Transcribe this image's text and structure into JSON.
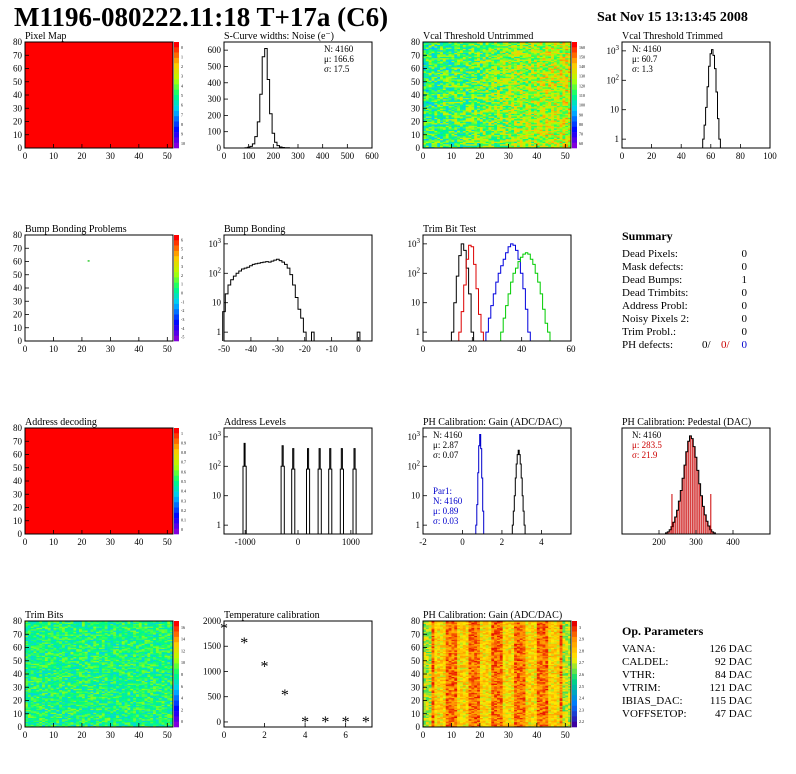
{
  "header": {
    "title": "M1196-080222.11:18 T+17a (C6)",
    "date": "Sat Nov 15 13:13:45 2008"
  },
  "summary": {
    "title": "Summary",
    "rows": [
      {
        "label": "Dead Pixels:",
        "value": "0"
      },
      {
        "label": "Mask defects:",
        "value": "0"
      },
      {
        "label": "Dead Bumps:",
        "value": "1"
      },
      {
        "label": "Dead Trimbits:",
        "value": "0"
      },
      {
        "label": "Address Probl:",
        "value": "0"
      },
      {
        "label": "Noisy Pixels 2:",
        "value": "0"
      },
      {
        "label": "Trim Probl.:",
        "value": "0"
      }
    ],
    "ph_defects": {
      "label": "PH defects:",
      "v1": "0/",
      "v2": "0/",
      "v3": "0",
      "c1": "#000000",
      "c2": "#cc0000",
      "c3": "#0000cc"
    }
  },
  "op_params": {
    "title": "Op. Parameters",
    "rows": [
      {
        "label": "VANA:",
        "value": "126 DAC"
      },
      {
        "label": "CALDEL:",
        "value": "92 DAC"
      },
      {
        "label": "VTHR:",
        "value": "84 DAC"
      },
      {
        "label": "VTRIM:",
        "value": "121 DAC"
      },
      {
        "label": "IBIAS_DAC:",
        "value": "115 DAC"
      },
      {
        "label": "VOFFSETOP:",
        "value": "47 DAC"
      }
    ]
  },
  "chart_data": [
    {
      "id": "pixel-map",
      "type": "heatmap",
      "title": "Pixel Map",
      "xlim": [
        0,
        52
      ],
      "ylim": [
        0,
        80
      ],
      "xticks": [
        0,
        10,
        20,
        30,
        40,
        50
      ],
      "yticks": [
        0,
        10,
        20,
        30,
        40,
        50,
        60,
        70,
        80
      ],
      "mode": "uniform",
      "fill": "#ff0000",
      "zticks": [
        "0",
        "1",
        "2",
        "3",
        "4",
        "5",
        "6",
        "7",
        "8",
        "9",
        "10"
      ],
      "palette": "rainbow"
    },
    {
      "id": "scurve-widths",
      "type": "histogram",
      "title": "S-Curve widths: Noise (e⁻)",
      "xlim": [
        0,
        600
      ],
      "ylim": [
        0,
        650
      ],
      "xticks": [
        0,
        100,
        200,
        300,
        400,
        500,
        600
      ],
      "yticks": [
        0,
        100,
        200,
        300,
        400,
        500,
        600
      ],
      "stats": [
        {
          "t": "N: 4160",
          "c": "#000"
        },
        {
          "t": "μ: 166.6",
          "c": "#000"
        },
        {
          "t": "σ: 17.5",
          "c": "#000"
        }
      ],
      "series": [
        {
          "color": "#000000",
          "x": [
            90,
            100,
            110,
            120,
            130,
            140,
            150,
            160,
            170,
            180,
            190,
            200,
            210,
            220,
            230,
            240,
            250,
            260,
            270,
            280
          ],
          "y": [
            2,
            4,
            10,
            25,
            70,
            160,
            330,
            560,
            610,
            420,
            210,
            90,
            35,
            15,
            6,
            3,
            2,
            1,
            0,
            0
          ]
        }
      ]
    },
    {
      "id": "vcal-untrimmed",
      "type": "heatmap",
      "title": "Vcal Threshold Untrimmed",
      "xlim": [
        0,
        52
      ],
      "ylim": [
        0,
        80
      ],
      "xticks": [
        0,
        10,
        20,
        30,
        40,
        50
      ],
      "yticks": [
        0,
        10,
        20,
        30,
        40,
        50,
        60,
        70,
        80
      ],
      "mode": "random",
      "center": 0.6,
      "spread": 0.18,
      "gradient": 0.003,
      "zticks": [
        "160",
        "150",
        "140",
        "130",
        "120",
        "110",
        "100",
        "90",
        "80",
        "70",
        "60"
      ],
      "palette": "rainbow"
    },
    {
      "id": "vcal-trimmed",
      "type": "histogram",
      "title": "Vcal Threshold Trimmed",
      "xlim": [
        0,
        100
      ],
      "log": true,
      "ylim": [
        0.5,
        2000
      ],
      "xticks": [
        0,
        20,
        40,
        60,
        80,
        100
      ],
      "yticks": [
        1,
        10,
        100,
        1000
      ],
      "stats": [
        {
          "t": "N: 4160",
          "c": "#000"
        },
        {
          "t": "μ: 60.7",
          "c": "#000"
        },
        {
          "t": "σ: 1.3",
          "c": "#000"
        }
      ],
      "series": [
        {
          "color": "#000000",
          "x": [
            55,
            56,
            57,
            58,
            59,
            60,
            61,
            62,
            63,
            64,
            65,
            66
          ],
          "y": [
            1,
            3,
            12,
            60,
            300,
            800,
            1100,
            700,
            250,
            40,
            5,
            1
          ]
        }
      ]
    },
    {
      "id": "bump-problems",
      "type": "heatmap",
      "title": "Bump Bonding Problems",
      "xlim": [
        0,
        52
      ],
      "ylim": [
        0,
        80
      ],
      "xticks": [
        0,
        10,
        20,
        30,
        40,
        50
      ],
      "yticks": [
        0,
        10,
        20,
        30,
        40,
        50,
        60,
        70,
        80
      ],
      "mode": "points",
      "points": [
        [
          22,
          61,
          "#33cc33"
        ]
      ],
      "zticks": [
        "6",
        "5",
        "4",
        "3",
        "2",
        "1",
        "0",
        "-1",
        "-2",
        "-3",
        "-4",
        "-5"
      ],
      "palette": "rainbow"
    },
    {
      "id": "bump-bonding",
      "type": "histogram",
      "title": "Bump Bonding",
      "xlim": [
        -50,
        5
      ],
      "log": true,
      "ylim": [
        0.5,
        2000
      ],
      "xticks": [
        -50,
        -40,
        -30,
        -20,
        -10,
        0
      ],
      "yticks": [
        1,
        10,
        100,
        1000
      ],
      "series": [
        {
          "color": "#000000",
          "x": [
            -50,
            -49,
            -48,
            -47,
            -46,
            -45,
            -44,
            -43,
            -42,
            -41,
            -40,
            -39,
            -38,
            -37,
            -36,
            -35,
            -34,
            -33,
            -32,
            -31,
            -30,
            -29,
            -28,
            -27,
            -26,
            -25,
            -24,
            -23,
            -22,
            -21,
            -20,
            -19,
            -18,
            -17,
            -16,
            -15,
            -14,
            -13,
            -12,
            -11,
            -10,
            -9,
            -8,
            -7,
            -6,
            -5,
            -4,
            -3,
            -2,
            -1,
            0,
            1
          ],
          "y": [
            5,
            20,
            40,
            60,
            80,
            100,
            120,
            140,
            150,
            160,
            180,
            200,
            210,
            220,
            230,
            240,
            250,
            240,
            260,
            280,
            300,
            270,
            240,
            200,
            150,
            90,
            40,
            15,
            6,
            3,
            1,
            0,
            0,
            1,
            0,
            0,
            0,
            0,
            0,
            0,
            0,
            0,
            0,
            0,
            0,
            0,
            0,
            0,
            0,
            0,
            1,
            0
          ]
        }
      ]
    },
    {
      "id": "trim-bit-test",
      "type": "histogram",
      "title": "Trim Bit Test",
      "xlim": [
        0,
        60
      ],
      "log": true,
      "ylim": [
        0.5,
        2000
      ],
      "xticks": [
        0,
        20,
        40,
        60
      ],
      "yticks": [
        1,
        10,
        100,
        1000
      ],
      "series": [
        {
          "color": "#000000",
          "x": [
            12,
            13,
            14,
            15,
            16,
            17,
            18,
            19,
            20
          ],
          "y": [
            1,
            10,
            80,
            400,
            1000,
            600,
            150,
            20,
            1
          ]
        },
        {
          "color": "#dd0000",
          "x": [
            15,
            16,
            17,
            18,
            19,
            20,
            21,
            22,
            23,
            24
          ],
          "y": [
            1,
            5,
            40,
            300,
            900,
            800,
            200,
            30,
            4,
            1
          ]
        },
        {
          "color": "#0000dd",
          "x": [
            26,
            27,
            28,
            29,
            30,
            31,
            32,
            33,
            34,
            35,
            36,
            37,
            38,
            39,
            40,
            41,
            42,
            43
          ],
          "y": [
            1,
            3,
            8,
            20,
            50,
            100,
            180,
            300,
            500,
            800,
            1000,
            900,
            600,
            300,
            100,
            30,
            6,
            1
          ]
        },
        {
          "color": "#00cc00",
          "x": [
            32,
            33,
            34,
            35,
            36,
            37,
            38,
            39,
            40,
            41,
            42,
            43,
            44,
            45,
            46,
            47,
            48,
            49,
            50,
            51
          ],
          "y": [
            1,
            3,
            8,
            20,
            50,
            100,
            150,
            250,
            350,
            450,
            500,
            450,
            300,
            200,
            100,
            50,
            20,
            6,
            2,
            1
          ]
        }
      ]
    },
    {
      "id": "address-decoding",
      "type": "heatmap",
      "title": "Address decoding",
      "xlim": [
        0,
        52
      ],
      "ylim": [
        0,
        80
      ],
      "xticks": [
        0,
        10,
        20,
        30,
        40,
        50
      ],
      "yticks": [
        0,
        10,
        20,
        30,
        40,
        50,
        60,
        70,
        80
      ],
      "mode": "uniform",
      "fill": "#ff0000",
      "zticks": [
        "1",
        "0.9",
        "0.8",
        "0.7",
        "0.6",
        "0.5",
        "0.4",
        "0.3",
        "0.2",
        "0.1",
        "0"
      ],
      "palette": "rainbow"
    },
    {
      "id": "address-levels",
      "type": "histogram",
      "title": "Address Levels",
      "xlim": [
        -1400,
        1400
      ],
      "log": true,
      "ylim": [
        0.5,
        2000
      ],
      "xticks": [
        -1000,
        0,
        1000
      ],
      "yticks": [
        1,
        10,
        100,
        1000
      ],
      "series": [
        {
          "color": "#000000",
          "x": [
            -1050,
            -1030,
            -1010,
            -990,
            -970,
            -330,
            -310,
            -290,
            -270,
            -250,
            -130,
            -110,
            -90,
            -70,
            -50,
            150,
            170,
            190,
            210,
            230,
            370,
            390,
            410,
            430,
            450,
            570,
            590,
            610,
            630,
            650,
            790,
            810,
            830,
            850,
            870,
            1030,
            1050,
            1070,
            1090,
            1110
          ],
          "y": [
            0,
            100,
            600,
            100,
            0,
            0,
            100,
            500,
            100,
            0,
            0,
            80,
            400,
            80,
            0,
            0,
            80,
            400,
            80,
            0,
            0,
            80,
            400,
            80,
            0,
            0,
            80,
            400,
            80,
            0,
            0,
            80,
            400,
            80,
            0,
            0,
            80,
            400,
            80,
            0
          ]
        }
      ]
    },
    {
      "id": "ph-gain",
      "type": "histogram",
      "title": "PH Calibration: Gain (ADC/DAC)",
      "xlim": [
        -2,
        5.5
      ],
      "log": true,
      "ylim": [
        0.5,
        2000
      ],
      "xticks": [
        -2,
        0,
        2,
        4
      ],
      "yticks": [
        1,
        10,
        100,
        1000
      ],
      "stats": [
        {
          "t": "N: 4160",
          "c": "#000"
        },
        {
          "t": "μ: 2.87",
          "c": "#000"
        },
        {
          "t": "σ: 0.07",
          "c": "#000"
        }
      ],
      "stats2": [
        {
          "t": "Par1:",
          "c": "#0000cc"
        },
        {
          "t": "N: 4160",
          "c": "#0000cc"
        },
        {
          "t": "μ: 0.89",
          "c": "#0000cc"
        },
        {
          "t": "σ: 0.03",
          "c": "#0000cc"
        }
      ],
      "series": [
        {
          "color": "#000000",
          "x": [
            2.55,
            2.6,
            2.65,
            2.7,
            2.75,
            2.8,
            2.85,
            2.9,
            2.95,
            3.0,
            3.05,
            3.1,
            3.15,
            3.2
          ],
          "y": [
            1,
            3,
            10,
            40,
            120,
            250,
            350,
            250,
            120,
            40,
            10,
            3,
            1,
            0
          ]
        },
        {
          "color": "#0000cc",
          "x": [
            0.7,
            0.75,
            0.8,
            0.85,
            0.9,
            0.95,
            1.0,
            1.05,
            1.1
          ],
          "y": [
            1,
            5,
            60,
            500,
            1200,
            400,
            40,
            3,
            0
          ]
        }
      ]
    },
    {
      "id": "ph-pedestal",
      "type": "histogram",
      "title": "PH Calibration: Pedestal (DAC)",
      "xlim": [
        100,
        500
      ],
      "ylim": [
        0,
        200
      ],
      "xticks": [
        200,
        300,
        400
      ],
      "yticks": [],
      "filled": true,
      "markers": [
        235,
        340
      ],
      "stats": [
        {
          "t": "N: 4160",
          "c": "#000"
        },
        {
          "t": "μ: 283.5",
          "c": "#cc0000"
        },
        {
          "t": "σ: 21.9",
          "c": "#cc0000"
        }
      ],
      "series": [
        {
          "color": "#000000",
          "x": [
            220,
            225,
            230,
            235,
            240,
            245,
            250,
            255,
            260,
            265,
            270,
            275,
            280,
            285,
            290,
            295,
            300,
            305,
            310,
            315,
            320,
            325,
            330,
            335,
            340,
            345,
            350
          ],
          "y": [
            2,
            4,
            8,
            14,
            22,
            32,
            45,
            62,
            82,
            105,
            130,
            155,
            175,
            185,
            180,
            165,
            145,
            120,
            95,
            72,
            52,
            36,
            24,
            15,
            8,
            4,
            2
          ]
        }
      ]
    },
    {
      "id": "trim-bits",
      "type": "heatmap",
      "title": "Trim Bits",
      "xlim": [
        0,
        52
      ],
      "ylim": [
        0,
        80
      ],
      "xticks": [
        0,
        10,
        20,
        30,
        40,
        50
      ],
      "yticks": [
        0,
        10,
        20,
        30,
        40,
        50,
        60,
        70,
        80
      ],
      "mode": "random",
      "center": 0.5,
      "spread": 0.12,
      "gradient": 0,
      "zticks": [
        "16",
        "14",
        "12",
        "10",
        "8",
        "6",
        "4",
        "2",
        "0"
      ],
      "palette": "rainbow"
    },
    {
      "id": "temperature-calibration",
      "type": "scatter",
      "title": "Temperature calibration",
      "xlim": [
        0,
        7.3
      ],
      "ylim": [
        -100,
        2000
      ],
      "xticks": [
        0,
        2,
        4,
        6
      ],
      "yticks": [
        0,
        500,
        1000,
        1500,
        2000
      ],
      "series": [
        {
          "color": "#000000",
          "x": [
            0,
            1,
            2,
            3,
            4,
            5,
            6,
            7
          ],
          "y": [
            1850,
            1560,
            1100,
            530,
            0,
            0,
            0,
            0
          ]
        }
      ]
    },
    {
      "id": "ph-gain-map",
      "type": "heatmap",
      "title": "PH Calibration: Gain (ADC/DAC)",
      "xlim": [
        0,
        52
      ],
      "ylim": [
        0,
        80
      ],
      "xticks": [
        0,
        10,
        20,
        30,
        40,
        50
      ],
      "yticks": [
        0,
        10,
        20,
        30,
        40,
        50,
        60,
        70,
        80
      ],
      "mode": "random",
      "center": 0.75,
      "spread": 0.12,
      "gradient": 0,
      "columns": true,
      "zticks": [
        "3",
        "2.9",
        "2.8",
        "2.7",
        "2.6",
        "2.5",
        "2.4",
        "2.3",
        "2.2"
      ],
      "palette": "heat"
    }
  ]
}
